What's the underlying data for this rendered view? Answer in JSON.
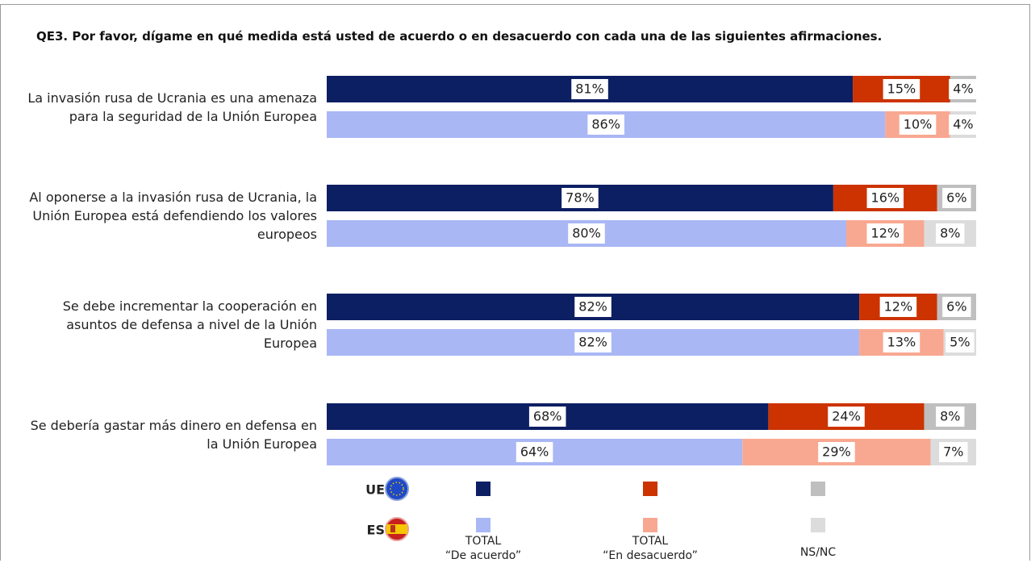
{
  "chart_data": {
    "type": "stacked-bar",
    "title": "QE3. Por favor, dígame en qué medida está usted de acuerdo o en desacuerdo con cada una de las siguientes afirmaciones.",
    "categories": [
      "La invasión rusa de Ucrania es una amenaza para la seguridad de la Unión Europea",
      "Al oponerse a la invasión rusa de Ucrania, la Unión Europea está defendiendo los valores europeos",
      "Se debe incrementar la cooperación en asuntos de defensa a nivel de la Unión Europea",
      "Se debería gastar más dinero en defensa en la Unión Europea"
    ],
    "groups": [
      "UE",
      "ES"
    ],
    "xlim": [
      0,
      100
    ],
    "series": [
      {
        "name": "TOTAL\n“De acuerdo”",
        "colors": [
          "#0d1f63",
          "#a9b7f5"
        ],
        "values": [
          [
            81,
            78,
            82,
            68
          ],
          [
            86,
            80,
            82,
            64
          ]
        ],
        "value_labels": [
          [
            "81%",
            "78%",
            "82%",
            "68%"
          ],
          [
            "86%",
            "80%",
            "82%",
            "64%"
          ]
        ]
      },
      {
        "name": "TOTAL\n“En desacuerdo”",
        "colors": [
          "#cc3300",
          "#f8a891"
        ],
        "values": [
          [
            15,
            16,
            12,
            24
          ],
          [
            10,
            12,
            13,
            29
          ]
        ],
        "value_labels": [
          [
            "15%",
            "16%",
            "12%",
            "24%"
          ],
          [
            "10%",
            "12%",
            "13%",
            "29%"
          ]
        ]
      },
      {
        "name": "NS/NC",
        "colors": [
          "#bfbfbf",
          "#dcdcdc"
        ],
        "values": [
          [
            4,
            6,
            6,
            8
          ],
          [
            4,
            8,
            5,
            7
          ]
        ],
        "value_labels": [
          [
            "4%",
            "6%",
            "6%",
            "8%"
          ],
          [
            "4%",
            "8%",
            "5%",
            "7%"
          ]
        ]
      }
    ]
  }
}
